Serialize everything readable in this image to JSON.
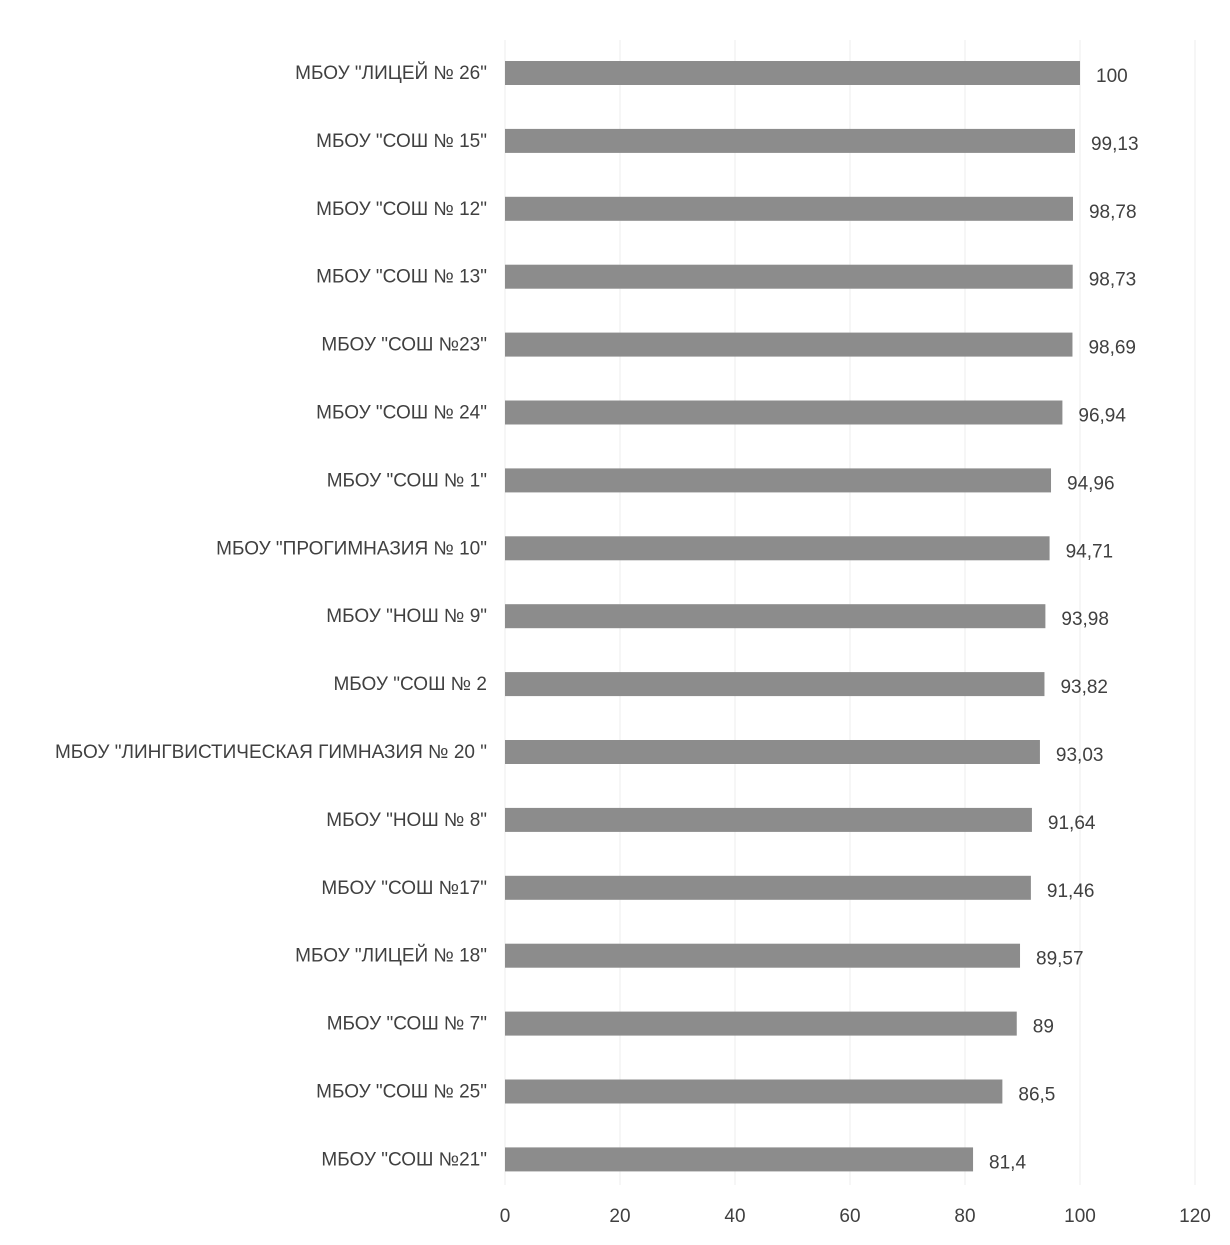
{
  "chart_data": {
    "type": "bar",
    "orientation": "horizontal",
    "title": "",
    "xlabel": "",
    "ylabel": "",
    "categories": [
      "МБОУ \"ЛИЦЕЙ № 26\"",
      "МБОУ \"СОШ № 15\"",
      "МБОУ \"СОШ № 12\"",
      "МБОУ \"СОШ № 13\"",
      "МБОУ \"СОШ №23\"",
      "МБОУ \"СОШ № 24\"",
      "МБОУ \"СОШ № 1\"",
      "МБОУ \"ПРОГИМНАЗИЯ № 10\"",
      "МБОУ \"НОШ № 9\"",
      "МБОУ \"СОШ № 2",
      "МБОУ \"ЛИНГВИСТИЧЕСКАЯ ГИМНАЗИЯ № 20 \"",
      "МБОУ \"НОШ № 8\"",
      "МБОУ \"СОШ №17\"",
      "МБОУ \"ЛИЦЕЙ № 18\"",
      "МБОУ \"СОШ № 7\"",
      "МБОУ \"СОШ № 25\"",
      "МБОУ \"СОШ №21\""
    ],
    "values": [
      100,
      99.13,
      98.78,
      98.73,
      98.69,
      96.94,
      94.96,
      94.71,
      93.98,
      93.82,
      93.03,
      91.64,
      91.46,
      89.57,
      89,
      86.5,
      81.4
    ],
    "value_labels": [
      "100",
      "99,13",
      "98,78",
      "98,73",
      "98,69",
      "96,94",
      "94,96",
      "94,71",
      "93,98",
      "93,82",
      "93,03",
      "91,64",
      "91,46",
      "89,57",
      "89",
      "86,5",
      "81,4"
    ],
    "xlim": [
      0,
      120
    ],
    "x_ticks": [
      0,
      20,
      40,
      60,
      80,
      100,
      120
    ],
    "x_tick_labels": [
      "0",
      "20",
      "40",
      "60",
      "80",
      "100",
      "120"
    ],
    "grid": "vertical",
    "legend": "none",
    "bar_color": "#8c8c8c",
    "grid_color": "#ececec",
    "text_color": "#404040"
  }
}
